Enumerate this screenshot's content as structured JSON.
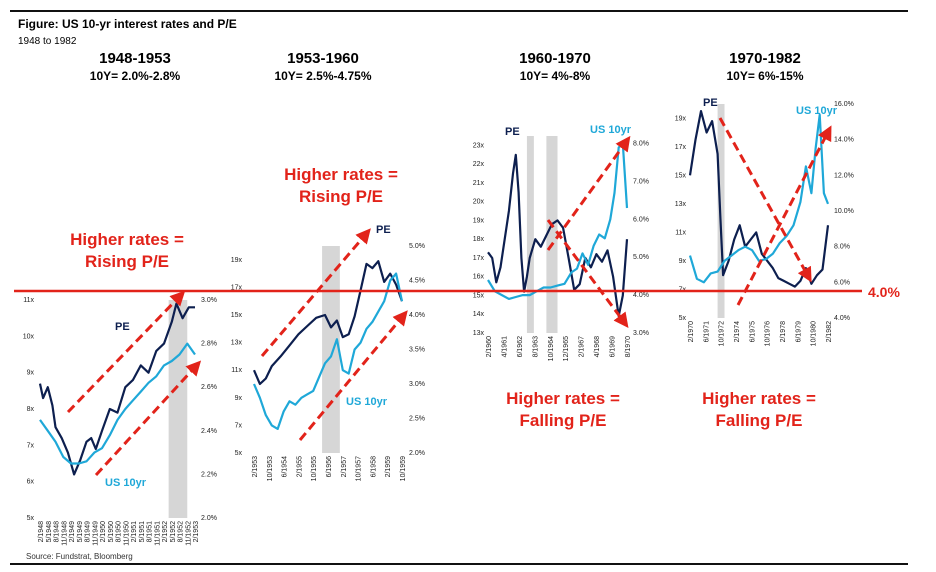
{
  "figure": {
    "title": "Figure: US 10-yr interest rates and P/E",
    "subtitle": "1948 to 1982",
    "source": "Source: Fundstrat, Bloomberg"
  },
  "colors": {
    "pe": "#0d1f4f",
    "us10": "#1fa8d8",
    "arrow": "#e2231a",
    "shade": "#d6d6d6"
  },
  "reference_line": {
    "label": "4.0%",
    "value": 4.0
  },
  "periods": [
    {
      "title": "1948-1953",
      "range": "10Y= 2.0%-2.8%"
    },
    {
      "title": "1953-1960",
      "range": "10Y= 2.5%-4.75%"
    },
    {
      "title": "1960-1970",
      "range": "10Y= 4%-8%"
    },
    {
      "title": "1970-1982",
      "range": "10Y= 6%-15%"
    }
  ],
  "annotations": [
    {
      "line1": "Higher rates =",
      "line2": "Rising P/E"
    },
    {
      "line1": "Higher rates =",
      "line2": "Rising P/E"
    },
    {
      "line1": "Higher rates =",
      "line2": "Falling P/E"
    },
    {
      "line1": "Higher rates =",
      "line2": "Falling P/E"
    }
  ],
  "chart_data": [
    {
      "type": "line",
      "title": "1948-1953",
      "series_labels": {
        "pe": "PE",
        "us10": "US 10yr"
      },
      "x_ticks": [
        "2/1948",
        "5/1948",
        "8/1948",
        "11/1948",
        "2/1949",
        "5/1949",
        "8/1949",
        "11/1949",
        "2/1950",
        "5/1950",
        "8/1950",
        "11/1950",
        "2/1951",
        "5/1951",
        "8/1951",
        "11/1951",
        "2/1952",
        "5/1952",
        "8/1952",
        "11/1952",
        "2/1953"
      ],
      "left_ticks": [
        "5x",
        "6x",
        "7x",
        "8x",
        "9x",
        "10x",
        "11x"
      ],
      "right_ticks": [
        "2.0%",
        "2.2%",
        "2.4%",
        "2.6%",
        "2.8%",
        "3.0%"
      ],
      "left_range": [
        5,
        11
      ],
      "right_range": [
        2.0,
        3.0
      ],
      "recession_shading": [
        [
          0.83,
          0.95
        ]
      ],
      "series": [
        {
          "name": "PE",
          "axis": "left",
          "x": [
            0,
            0.02,
            0.05,
            0.08,
            0.1,
            0.14,
            0.18,
            0.22,
            0.26,
            0.3,
            0.33,
            0.36,
            0.4,
            0.45,
            0.5,
            0.55,
            0.6,
            0.65,
            0.7,
            0.75,
            0.8,
            0.85,
            0.88,
            0.92,
            0.96,
            1.0
          ],
          "values": [
            8.7,
            8.3,
            8.6,
            8.1,
            7.5,
            7.2,
            6.8,
            6.2,
            6.6,
            7.1,
            7.2,
            6.9,
            7.4,
            8.0,
            7.9,
            8.6,
            8.8,
            9.2,
            9.0,
            9.6,
            9.8,
            10.4,
            10.9,
            10.5,
            10.8,
            10.8
          ]
        },
        {
          "name": "US 10yr",
          "axis": "right",
          "x": [
            0,
            0.05,
            0.1,
            0.15,
            0.2,
            0.25,
            0.3,
            0.35,
            0.4,
            0.45,
            0.5,
            0.55,
            0.6,
            0.65,
            0.7,
            0.75,
            0.8,
            0.85,
            0.9,
            0.95,
            1.0
          ],
          "values": [
            2.45,
            2.4,
            2.35,
            2.28,
            2.25,
            2.25,
            2.26,
            2.3,
            2.32,
            2.38,
            2.45,
            2.5,
            2.54,
            2.58,
            2.62,
            2.65,
            2.7,
            2.72,
            2.75,
            2.8,
            2.75
          ]
        }
      ]
    },
    {
      "type": "line",
      "title": "1953-1960",
      "series_labels": {
        "pe": "PE",
        "us10": "US 10yr"
      },
      "x_ticks": [
        "2/1953",
        "10/1953",
        "6/1954",
        "2/1955",
        "10/1955",
        "6/1956",
        "2/1957",
        "10/1957",
        "6/1958",
        "2/1959",
        "10/1959"
      ],
      "left_ticks": [
        "5x",
        "7x",
        "9x",
        "11x",
        "13x",
        "15x",
        "17x",
        "19x"
      ],
      "right_ticks": [
        "2.0%",
        "2.5%",
        "3.0%",
        "3.5%",
        "4.0%",
        "4.5%",
        "5.0%"
      ],
      "left_range": [
        5,
        20
      ],
      "right_range": [
        2.0,
        5.0
      ],
      "recession_shading": [
        [
          0.46,
          0.58
        ]
      ],
      "series": [
        {
          "name": "PE",
          "axis": "left",
          "x": [
            0,
            0.04,
            0.08,
            0.12,
            0.18,
            0.24,
            0.3,
            0.36,
            0.42,
            0.48,
            0.52,
            0.56,
            0.6,
            0.64,
            0.68,
            0.72,
            0.76,
            0.8,
            0.84,
            0.88,
            0.92,
            0.96,
            1.0
          ],
          "values": [
            11.0,
            10.0,
            10.4,
            11.3,
            12.0,
            12.8,
            13.6,
            14.2,
            14.8,
            15.0,
            14.1,
            14.6,
            13.4,
            13.6,
            14.9,
            16.8,
            18.7,
            18.4,
            18.9,
            17.4,
            18.0,
            17.2,
            16.0
          ]
        },
        {
          "name": "US 10yr",
          "axis": "right",
          "x": [
            0,
            0.04,
            0.08,
            0.12,
            0.16,
            0.2,
            0.24,
            0.28,
            0.32,
            0.36,
            0.4,
            0.44,
            0.48,
            0.52,
            0.56,
            0.6,
            0.64,
            0.68,
            0.72,
            0.76,
            0.8,
            0.84,
            0.88,
            0.92,
            0.96,
            1.0
          ],
          "values": [
            3.0,
            2.8,
            2.55,
            2.4,
            2.35,
            2.6,
            2.75,
            2.7,
            2.8,
            2.85,
            2.9,
            3.1,
            3.3,
            3.4,
            3.65,
            3.2,
            3.15,
            3.5,
            3.6,
            3.8,
            3.9,
            4.05,
            4.2,
            4.5,
            4.6,
            4.2
          ]
        }
      ]
    },
    {
      "type": "line",
      "title": "1960-1970",
      "series_labels": {
        "pe": "PE",
        "us10": "US 10yr"
      },
      "x_ticks": [
        "2/1960",
        "4/1961",
        "6/1962",
        "8/1963",
        "10/1964",
        "12/1965",
        "2/1967",
        "4/1968",
        "6/1969",
        "8/1970"
      ],
      "left_ticks": [
        "13x",
        "14x",
        "15x",
        "16x",
        "17x",
        "18x",
        "19x",
        "20x",
        "21x",
        "22x",
        "23x"
      ],
      "right_ticks": [
        "3.0%",
        "4.0%",
        "5.0%",
        "6.0%",
        "7.0%",
        "8.0%"
      ],
      "left_range": [
        13,
        23.5
      ],
      "right_range": [
        3.0,
        8.2
      ],
      "recession_shading": [
        [
          0.28,
          0.33
        ],
        [
          0.42,
          0.5
        ]
      ],
      "series": [
        {
          "name": "PE",
          "axis": "left",
          "x": [
            0,
            0.03,
            0.06,
            0.09,
            0.12,
            0.15,
            0.18,
            0.2,
            0.22,
            0.24,
            0.26,
            0.28,
            0.3,
            0.34,
            0.38,
            0.42,
            0.46,
            0.5,
            0.54,
            0.58,
            0.62,
            0.66,
            0.7,
            0.74,
            0.78,
            0.82,
            0.86,
            0.9,
            0.94,
            0.97,
            1.0
          ],
          "values": [
            17.3,
            17.0,
            15.7,
            16.5,
            18.0,
            19.5,
            21.5,
            22.5,
            20.5,
            17.0,
            15.2,
            16.0,
            17.0,
            18.0,
            17.6,
            18.2,
            18.8,
            19.0,
            18.6,
            17.0,
            15.3,
            15.6,
            17.0,
            16.5,
            17.2,
            16.8,
            17.4,
            16.0,
            13.9,
            15.0,
            18.0
          ]
        },
        {
          "name": "US 10yr",
          "axis": "right",
          "x": [
            0,
            0.05,
            0.1,
            0.15,
            0.2,
            0.25,
            0.3,
            0.35,
            0.4,
            0.45,
            0.5,
            0.55,
            0.6,
            0.64,
            0.68,
            0.72,
            0.76,
            0.8,
            0.84,
            0.88,
            0.91,
            0.94,
            0.97,
            1.0
          ],
          "values": [
            4.4,
            4.1,
            4.0,
            3.9,
            3.95,
            4.0,
            4.0,
            4.1,
            4.2,
            4.2,
            4.25,
            4.3,
            4.6,
            4.7,
            5.1,
            4.8,
            5.3,
            5.6,
            5.5,
            6.0,
            6.7,
            7.9,
            8.0,
            6.3
          ]
        }
      ]
    },
    {
      "type": "line",
      "title": "1970-1982",
      "series_labels": {
        "pe": "PE",
        "us10": "US 10yr"
      },
      "x_ticks": [
        "2/1970",
        "6/1971",
        "10/1972",
        "2/1974",
        "6/1975",
        "10/1976",
        "2/1978",
        "6/1979",
        "10/1980",
        "2/1982"
      ],
      "left_ticks": [
        "5x",
        "7x",
        "9x",
        "11x",
        "13x",
        "15x",
        "17x",
        "19x"
      ],
      "right_ticks": [
        "4.0%",
        "6.0%",
        "8.0%",
        "10.0%",
        "12.0%",
        "14.0%",
        "16.0%"
      ],
      "left_range": [
        5,
        20
      ],
      "right_range": [
        4.0,
        16.0
      ],
      "recession_shading": [
        [
          0.2,
          0.25
        ]
      ],
      "series": [
        {
          "name": "PE",
          "axis": "left",
          "x": [
            0,
            0.04,
            0.08,
            0.12,
            0.16,
            0.2,
            0.22,
            0.24,
            0.28,
            0.32,
            0.36,
            0.4,
            0.44,
            0.48,
            0.52,
            0.56,
            0.6,
            0.64,
            0.68,
            0.72,
            0.76,
            0.8,
            0.84,
            0.88,
            0.92,
            0.96,
            1.0
          ],
          "values": [
            15.0,
            17.5,
            19.5,
            18.0,
            18.8,
            16.5,
            12.0,
            8.0,
            9.0,
            10.5,
            11.5,
            10.0,
            10.5,
            11.0,
            9.5,
            9.0,
            8.5,
            7.8,
            7.6,
            7.4,
            7.2,
            7.6,
            8.5,
            7.4,
            8.0,
            8.4,
            11.5
          ]
        },
        {
          "name": "US 10yr",
          "axis": "right",
          "x": [
            0,
            0.05,
            0.1,
            0.15,
            0.2,
            0.25,
            0.3,
            0.35,
            0.4,
            0.45,
            0.5,
            0.55,
            0.6,
            0.65,
            0.7,
            0.75,
            0.8,
            0.84,
            0.88,
            0.91,
            0.94,
            0.97,
            1.0
          ],
          "values": [
            7.5,
            6.2,
            6.0,
            6.5,
            6.6,
            7.2,
            7.5,
            7.8,
            8.0,
            7.8,
            7.2,
            7.3,
            7.6,
            8.2,
            8.6,
            9.2,
            10.5,
            12.5,
            11.0,
            13.5,
            15.4,
            11.0,
            10.4
          ]
        }
      ]
    }
  ]
}
